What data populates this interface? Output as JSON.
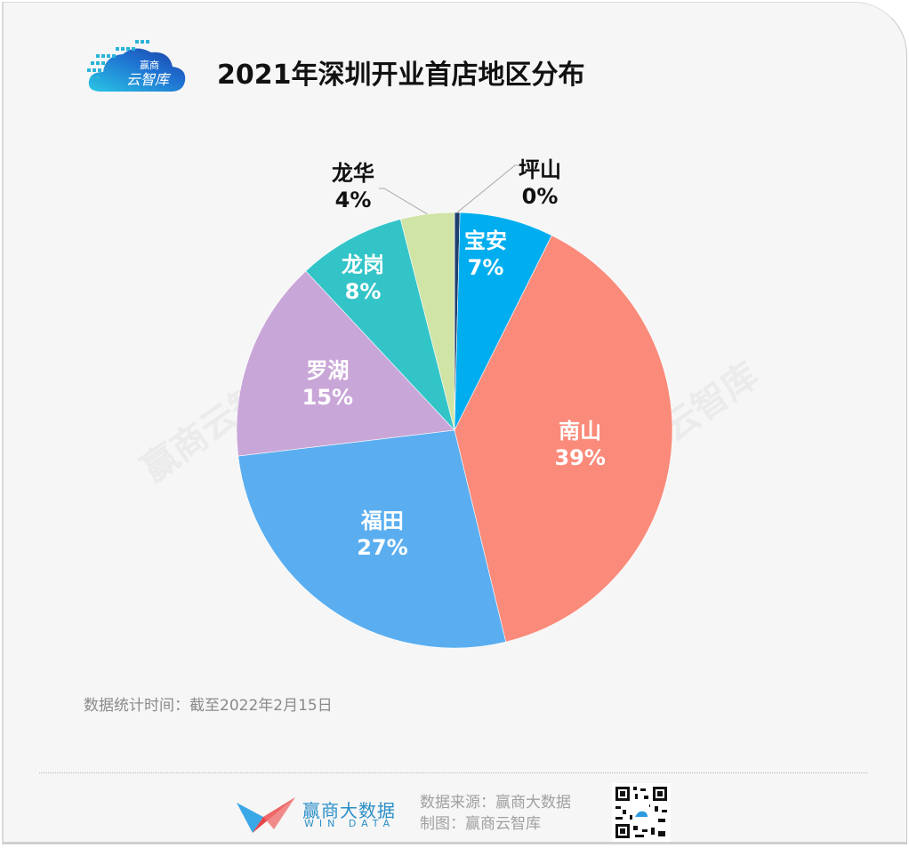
{
  "header": {
    "logo_text_top": "赢商",
    "logo_text_bottom": "云智库",
    "title": "2021年深圳开业首店地区分布"
  },
  "watermark": "赢商云智库",
  "note": "数据统计时间：截至2022年2月15日",
  "footer": {
    "brand_cn": "赢商大数据",
    "brand_en": "WIN DATA",
    "source_line": "数据来源：赢商大数据",
    "made_by_line": "制图：赢商云智库",
    "qr_label": "qr-code"
  },
  "chart_data": {
    "type": "pie",
    "title": "2021年深圳开业首店地区分布",
    "start_angle": "12 o'clock, clockwise",
    "categories": [
      "坪山",
      "宝安",
      "南山",
      "福田",
      "罗湖",
      "龙岗",
      "龙华"
    ],
    "values": [
      0.4,
      7,
      39,
      27,
      15,
      8,
      4
    ],
    "labels": [
      "0%",
      "7%",
      "39%",
      "27%",
      "15%",
      "8%",
      "4%"
    ],
    "colors": [
      "#1f3f6e",
      "#00aeef",
      "#fa8a7a",
      "#5aaef0",
      "#c9a6d8",
      "#33c4c8",
      "#d0e4a6"
    ],
    "label_colors": [
      "#111111",
      "#ffffff",
      "#ffffff",
      "#ffffff",
      "#ffffff",
      "#ffffff",
      "#111111"
    ],
    "outside_labels": [
      "坪山",
      "龙华"
    ],
    "legend": "none (inline labels)"
  }
}
